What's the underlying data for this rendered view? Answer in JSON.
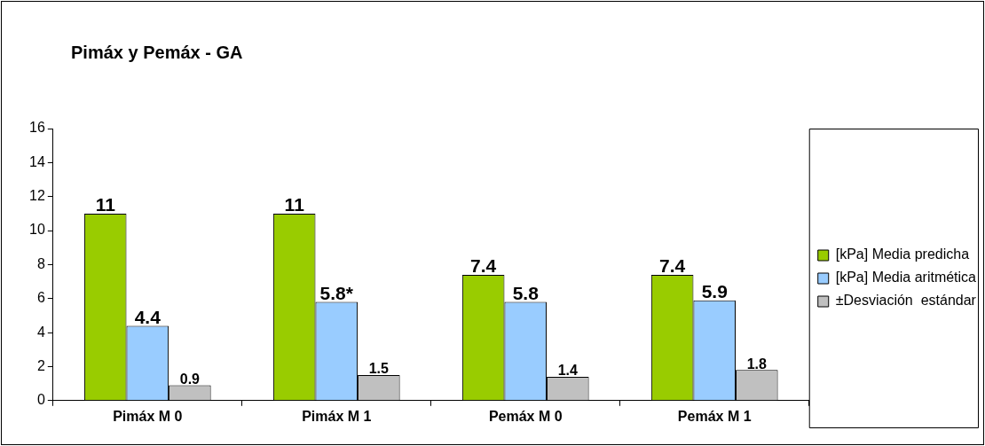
{
  "chart_data": {
    "type": "bar",
    "title": "Pimáx y Pemáx - GA",
    "categories": [
      "Pimáx M 0",
      "Pimáx M 1",
      "Pemáx M 0",
      "Pemáx M 1"
    ],
    "series": [
      {
        "name": "[kPa] Media predicha",
        "color": "#99cc00",
        "values": [
          11,
          11,
          7.4,
          7.4
        ],
        "value_labels": [
          "11",
          "11",
          "7.4",
          "7.4"
        ]
      },
      {
        "name": "[kPa] Media aritmética",
        "color": "#99ccff",
        "values": [
          4.4,
          5.8,
          5.8,
          5.9
        ],
        "value_labels": [
          "4.4",
          "5.8*",
          "5.8",
          "5.9"
        ]
      },
      {
        "name": "±Desviación  estándar",
        "color": "#c0c0c0",
        "values": [
          0.9,
          1.5,
          1.4,
          1.8
        ],
        "value_labels": [
          "0.9",
          "1.5",
          "1.4",
          "1.8"
        ]
      }
    ],
    "ylim": [
      0,
      16
    ],
    "yticks": [
      0,
      2,
      4,
      6,
      8,
      10,
      12,
      14,
      16
    ],
    "grid": false,
    "legend": "right"
  }
}
